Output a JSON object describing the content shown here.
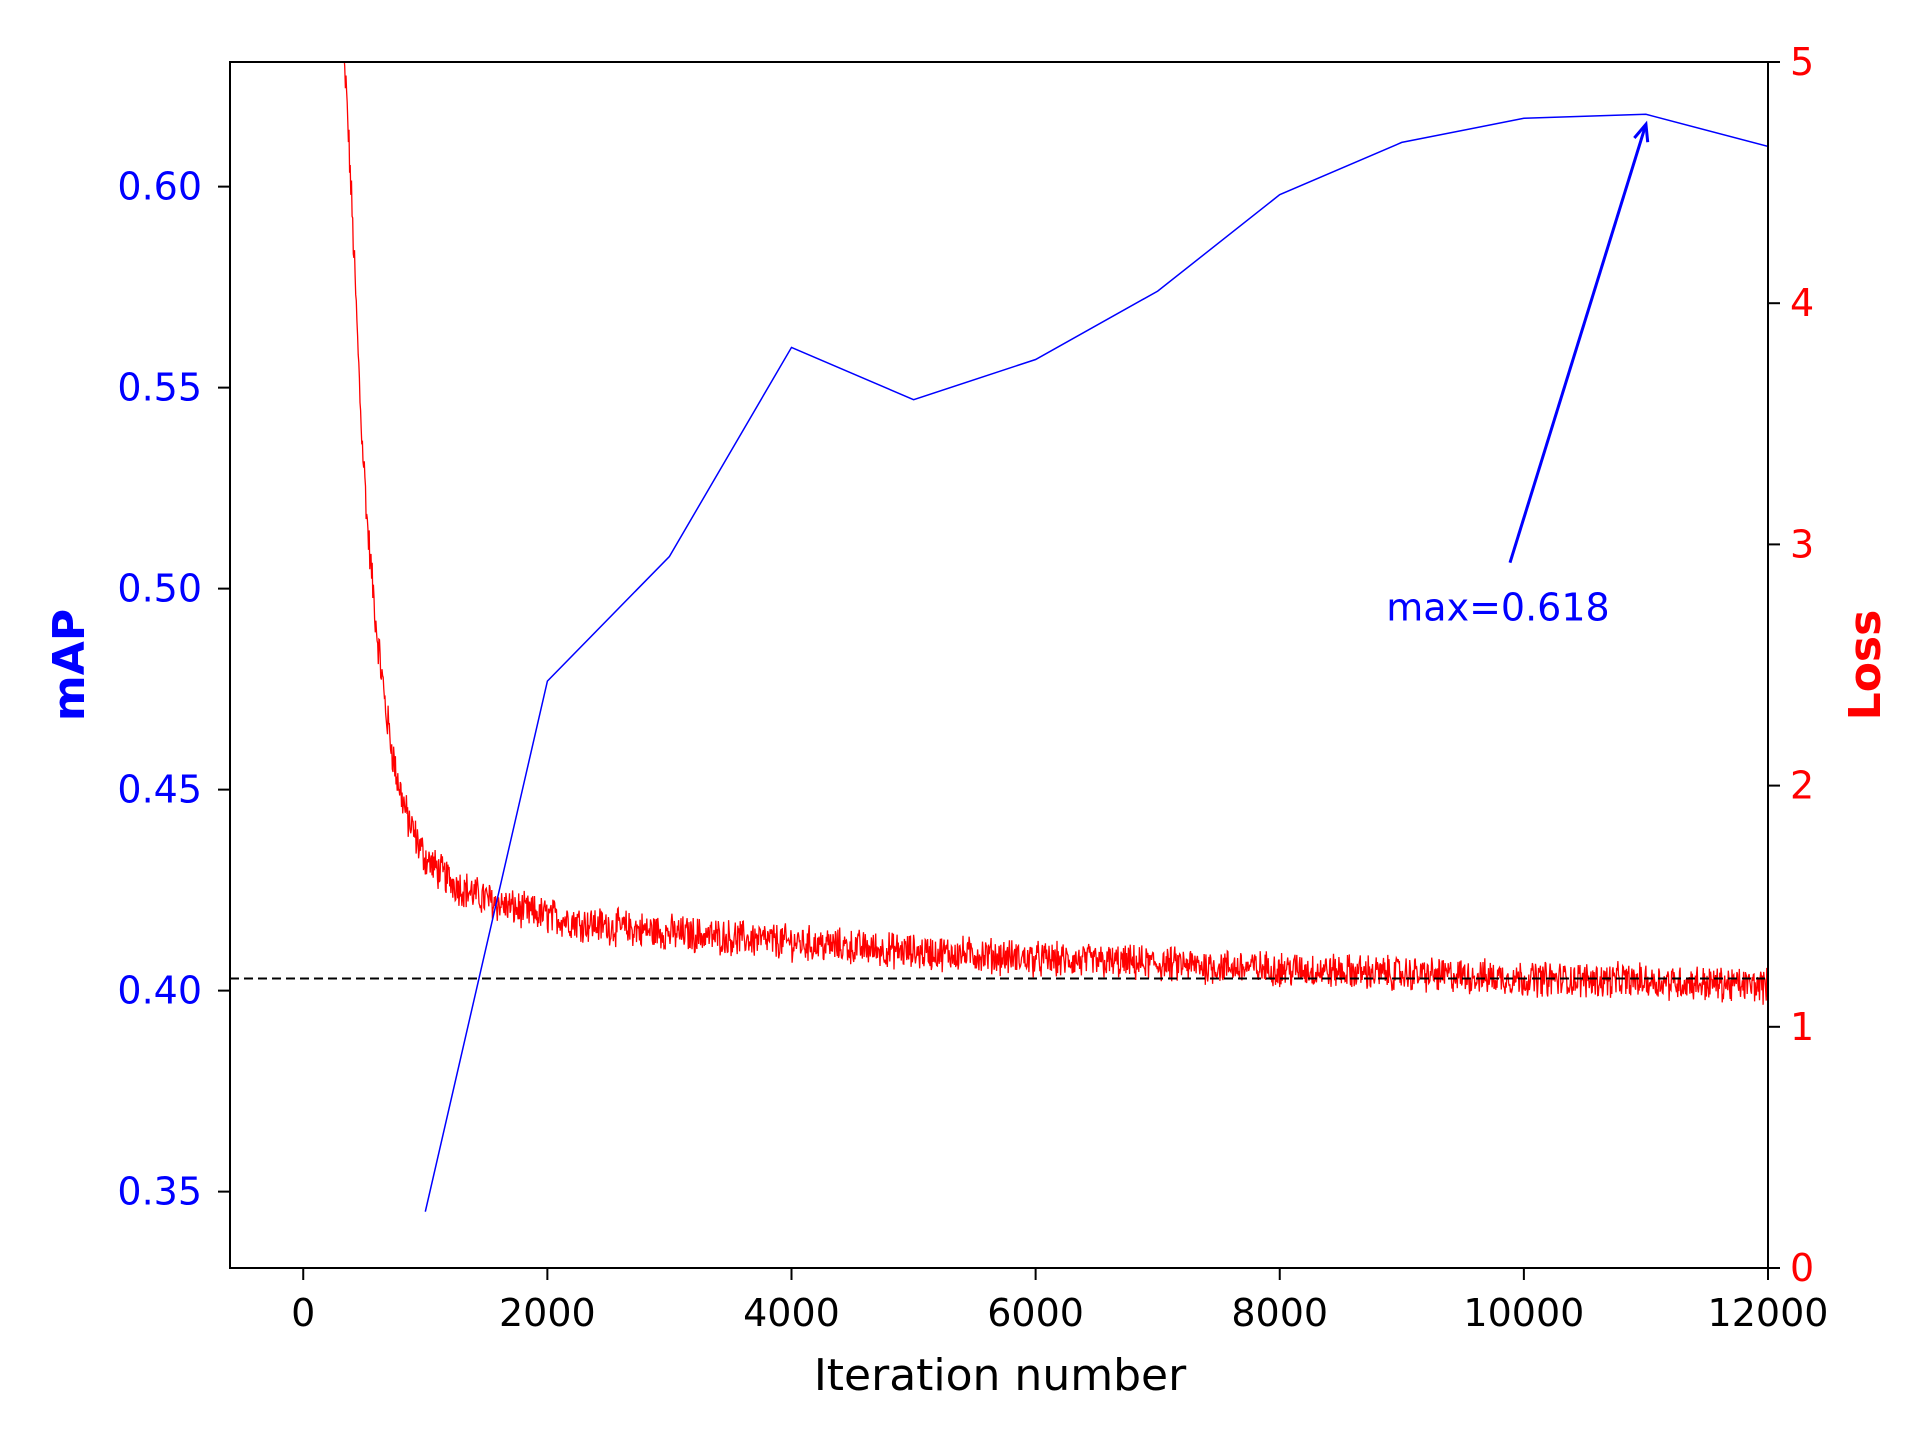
{
  "chart_data": {
    "type": "line",
    "title": "",
    "xlabel": "Iteration number",
    "ylabel_left": "mAP",
    "ylabel_right": "Loss",
    "xlim": [
      -600,
      12000
    ],
    "ylim_left": [
      0.331,
      0.631
    ],
    "ylim_right": [
      0,
      5
    ],
    "x_ticks": [
      0,
      2000,
      4000,
      6000,
      8000,
      10000,
      12000
    ],
    "y_left_ticks": [
      "0.35",
      "0.40",
      "0.45",
      "0.50",
      "0.55",
      "0.60"
    ],
    "y_right_ticks": [
      "0",
      "1",
      "2",
      "3",
      "4",
      "5"
    ],
    "grid": false,
    "colors": {
      "map": "#0000ff",
      "loss": "#ff0000",
      "reference": "#000000",
      "axes": "#000000"
    },
    "series": [
      {
        "key": "map",
        "axis": "left",
        "x": [
          1000,
          2000,
          3000,
          4000,
          5000,
          6000,
          7000,
          8000,
          9000,
          10000,
          11000,
          12000
        ],
        "values": [
          0.345,
          0.477,
          0.508,
          0.56,
          0.547,
          0.557,
          0.574,
          0.598,
          0.611,
          0.617,
          0.618,
          0.61
        ]
      },
      {
        "key": "loss",
        "axis": "right",
        "x": [
          330,
          350,
          380,
          420,
          470,
          530,
          600,
          680,
          760,
          850,
          950,
          1000,
          1100,
          1250,
          1400,
          1600,
          1800,
          2000,
          2300,
          2600,
          3000,
          3500,
          4000,
          4500,
          5000,
          5500,
          6000,
          7000,
          8000,
          9000,
          10000,
          11000,
          12000
        ],
        "values": [
          5.0,
          4.9,
          4.6,
          4.15,
          3.55,
          3.05,
          2.65,
          2.3,
          2.05,
          1.87,
          1.75,
          1.7,
          1.65,
          1.59,
          1.55,
          1.51,
          1.48,
          1.46,
          1.43,
          1.41,
          1.39,
          1.37,
          1.35,
          1.33,
          1.31,
          1.3,
          1.28,
          1.26,
          1.24,
          1.22,
          1.2,
          1.19,
          1.17
        ]
      },
      {
        "key": "reference",
        "axis": "left",
        "x": [
          -600,
          12000
        ],
        "values": [
          0.403,
          0.403
        ]
      }
    ],
    "annotations": [
      {
        "text": "max=0.618",
        "text_x": 9950,
        "text_y": 0.495,
        "arrow_to_x": 11000,
        "arrow_to_y": 0.618
      }
    ]
  }
}
